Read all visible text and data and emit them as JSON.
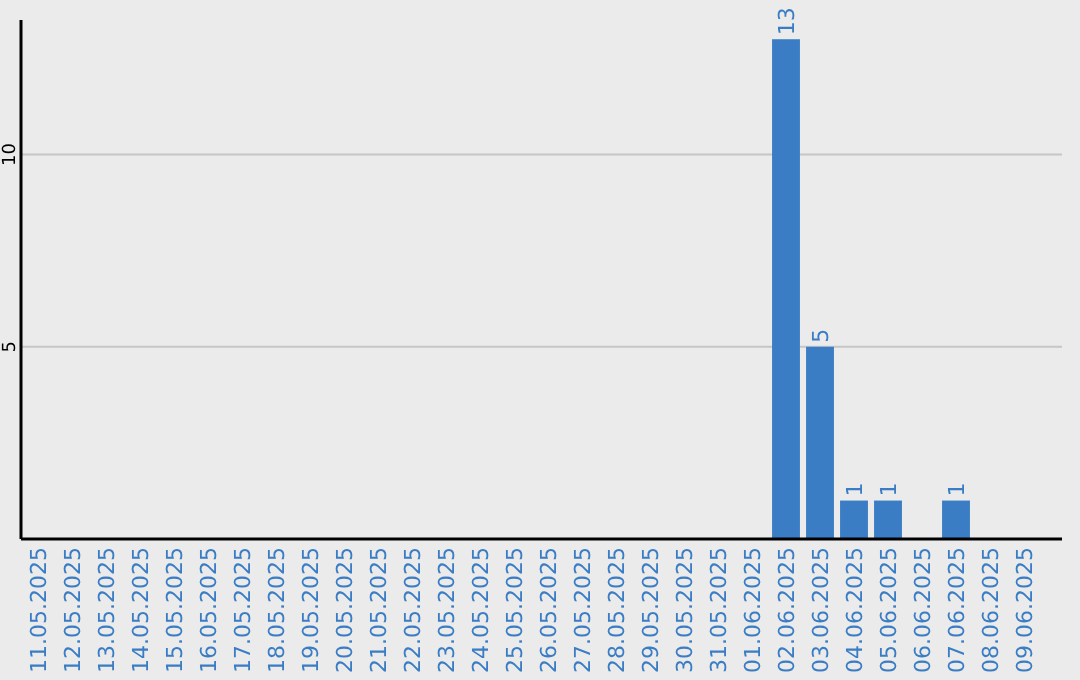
{
  "chart_data": {
    "type": "bar",
    "categories": [
      "11.05.2025",
      "12.05.2025",
      "13.05.2025",
      "14.05.2025",
      "15.05.2025",
      "16.05.2025",
      "17.05.2025",
      "18.05.2025",
      "19.05.2025",
      "20.05.2025",
      "21.05.2025",
      "22.05.2025",
      "23.05.2025",
      "24.05.2025",
      "25.05.2025",
      "26.05.2025",
      "27.05.2025",
      "28.05.2025",
      "29.05.2025",
      "30.05.2025",
      "31.05.2025",
      "01.06.2025",
      "02.06.2025",
      "03.06.2025",
      "04.06.2025",
      "05.06.2025",
      "06.06.2025",
      "07.06.2025",
      "08.06.2025",
      "09.06.2025"
    ],
    "values": [
      0,
      0,
      0,
      0,
      0,
      0,
      0,
      0,
      0,
      0,
      0,
      0,
      0,
      0,
      0,
      0,
      0,
      0,
      0,
      0,
      0,
      0,
      13,
      5,
      1,
      1,
      0,
      1,
      0,
      0
    ],
    "value_labels": [
      null,
      null,
      null,
      null,
      null,
      null,
      null,
      null,
      null,
      null,
      null,
      null,
      null,
      null,
      null,
      null,
      null,
      null,
      null,
      null,
      null,
      null,
      "13",
      "5",
      "1",
      "1",
      null,
      "1",
      null,
      null
    ],
    "color": "#3a7dc4",
    "ylim": [
      0,
      13.5
    ],
    "yticks": [
      5,
      10
    ],
    "grid": "y"
  }
}
